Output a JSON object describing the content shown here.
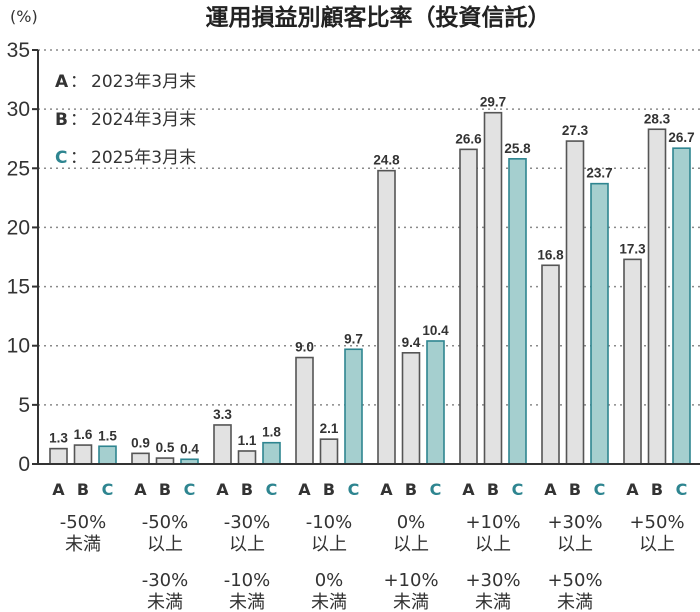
{
  "chart_data": {
    "type": "bar",
    "title": "運用損益別顧客比率（投資信託）",
    "ylabel": "(%)",
    "ylim": [
      0,
      35
    ],
    "yticks": [
      0,
      5,
      10,
      15,
      20,
      25,
      30,
      35
    ],
    "grid": true,
    "legend_position": "top-left",
    "bar_letters": [
      "A",
      "B",
      "C"
    ],
    "categories": [
      [
        "-50%",
        "未満"
      ],
      [
        "-50%",
        "以上",
        "-30%",
        "未満"
      ],
      [
        "-30%",
        "以上",
        "-10%",
        "未満"
      ],
      [
        "-10%",
        "以上",
        "0%",
        "未満"
      ],
      [
        "0%",
        "以上",
        "+10%",
        "未満"
      ],
      [
        "+10%",
        "以上",
        "+30%",
        "未満"
      ],
      [
        "+30%",
        "以上",
        "+50%",
        "未満"
      ],
      [
        "+50%",
        "以上"
      ]
    ],
    "legend": [
      {
        "key": "A",
        "sep": "：",
        "label": "2023年3月末"
      },
      {
        "key": "B",
        "sep": "：",
        "label": "2024年3月末"
      },
      {
        "key": "C",
        "sep": "：",
        "label": "2025年3月末"
      }
    ],
    "series": [
      {
        "name": "2023年3月末",
        "letter": "A",
        "values": [
          1.3,
          0.9,
          3.3,
          9.0,
          24.8,
          26.6,
          16.8,
          17.3
        ]
      },
      {
        "name": "2024年3月末",
        "letter": "B",
        "values": [
          1.6,
          0.5,
          1.1,
          2.1,
          9.4,
          29.7,
          27.3,
          28.3
        ]
      },
      {
        "name": "2025年3月末",
        "letter": "C",
        "values": [
          1.5,
          0.4,
          1.8,
          9.7,
          10.4,
          25.8,
          23.7,
          26.7
        ]
      }
    ]
  },
  "colors": {
    "A_fill": "#e2e2e2",
    "B_fill": "#e2e2e2",
    "C_fill": "#a5cfcf",
    "AB_stroke": "#555555",
    "C_stroke": "#2e8590",
    "C_text": "#2e8590"
  }
}
